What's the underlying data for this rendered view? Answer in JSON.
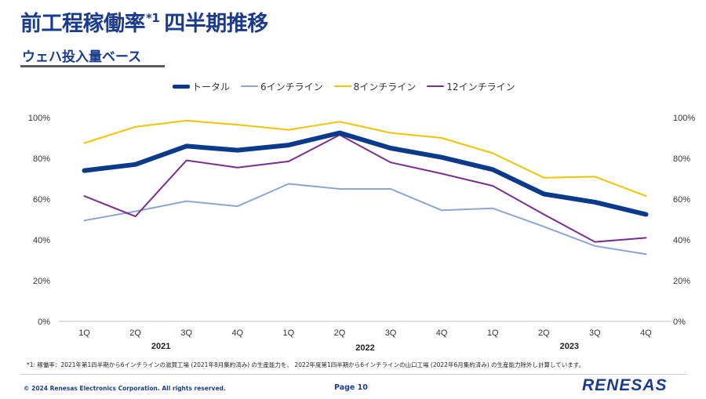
{
  "header": {
    "title": "前工程稼働率",
    "title_note": "*1",
    "title_suffix": "四半期推移",
    "subtitle": "ウェハ投入量ベース"
  },
  "colors": {
    "title": "#1b3c8c",
    "total": "#0b3a8a",
    "six_inch": "#8aa6d1",
    "eight_inch": "#f5c200",
    "twelve_inch": "#7b2d8e"
  },
  "chart_data": {
    "type": "line",
    "categories": [
      "1Q",
      "2Q",
      "3Q",
      "4Q",
      "1Q",
      "2Q",
      "3Q",
      "4Q",
      "1Q",
      "2Q",
      "3Q",
      "4Q"
    ],
    "year_labels": [
      "2021",
      "2022",
      "2023"
    ],
    "y_tick_labels": [
      "0%",
      "20%",
      "40%",
      "60%",
      "80%",
      "100%"
    ],
    "ylim": [
      0,
      100
    ],
    "y_unit": "%",
    "legend_position": "top",
    "series": [
      {
        "key": "total",
        "name": "トータル",
        "values": [
          74,
          77,
          86,
          84,
          86.5,
          92.5,
          85,
          80.5,
          74.5,
          62.5,
          58.5,
          52.5
        ]
      },
      {
        "key": "six_inch",
        "name": "6インチライン",
        "values": [
          49.5,
          54,
          59,
          56.5,
          67.5,
          65,
          65,
          54.5,
          55.5,
          46.5,
          37,
          33
        ]
      },
      {
        "key": "eight_inch",
        "name": "8インチライン",
        "values": [
          87.5,
          95.5,
          98.5,
          96.5,
          94,
          98,
          92.5,
          90,
          82.5,
          70.5,
          71,
          61.5
        ]
      },
      {
        "key": "twelve_inch",
        "name": "12インチライン",
        "values": [
          61.5,
          51.5,
          79,
          75.5,
          78.5,
          91.5,
          78,
          72.5,
          66.5,
          52.5,
          39,
          41
        ]
      }
    ]
  },
  "footer": {
    "footnote": "*1: 稼働率：2021年第1四半期から6インチラインの滋賀工場 (2021年8月集約済み) の生産能力を、 2022年度第1四半期から6インチラインの山口工場 (2022年6月集約済み) の生産能力除外し計算しています。",
    "copyright": "© 2024 Renesas Electronics Corporation. All rights reserved.",
    "page": "Page 10",
    "logo": "RENESAS"
  }
}
